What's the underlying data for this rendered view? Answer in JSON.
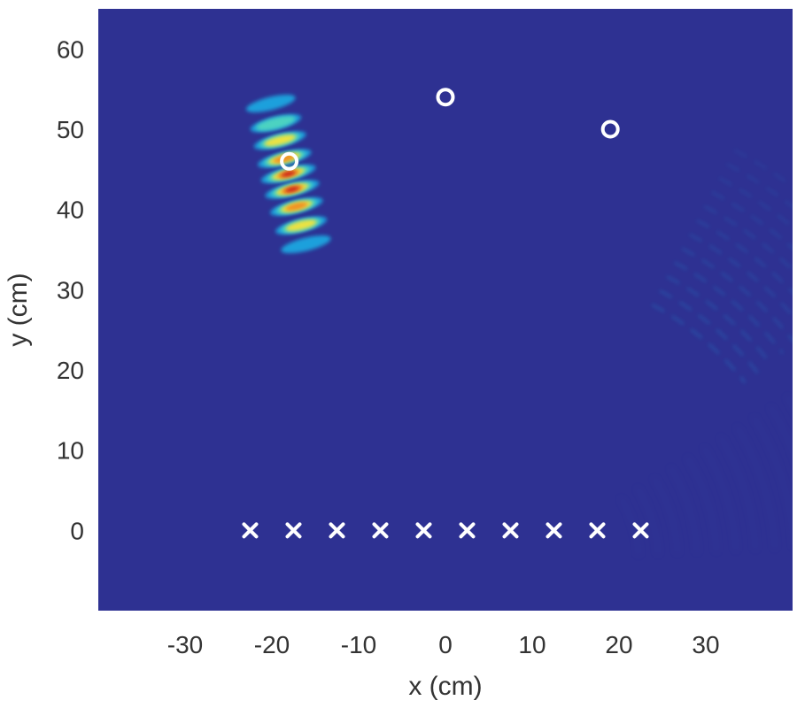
{
  "chart_data": {
    "type": "heatmap",
    "title": "",
    "xlabel": "x (cm)",
    "ylabel": "y (cm)",
    "xlim": [
      -40,
      40
    ],
    "ylim": [
      -10,
      65
    ],
    "xticks": [
      -30,
      -20,
      -10,
      0,
      10,
      20,
      30
    ],
    "yticks": [
      0,
      10,
      20,
      30,
      40,
      50,
      60
    ],
    "grid": false,
    "colors": {
      "background": "#2e3192",
      "marker": "#ffffff",
      "colormap": [
        "#2e3192",
        "#1aa6e0",
        "#4fd6c0",
        "#f5e33a",
        "#f08a24",
        "#c81e1e"
      ]
    },
    "sensors": {
      "marker": "x",
      "points": [
        [
          -22.5,
          0
        ],
        [
          -17.5,
          0
        ],
        [
          -12.5,
          0
        ],
        [
          -7.5,
          0
        ],
        [
          -2.5,
          0
        ],
        [
          2.5,
          0
        ],
        [
          7.5,
          0
        ],
        [
          12.5,
          0
        ],
        [
          17.5,
          0
        ],
        [
          22.5,
          0
        ]
      ]
    },
    "targets": {
      "marker": "o",
      "points": [
        [
          -18,
          46
        ],
        [
          0,
          54
        ],
        [
          19,
          50
        ]
      ]
    },
    "hotspot": {
      "center": [
        -18,
        44
      ],
      "intensity_peak": 1.0
    }
  }
}
